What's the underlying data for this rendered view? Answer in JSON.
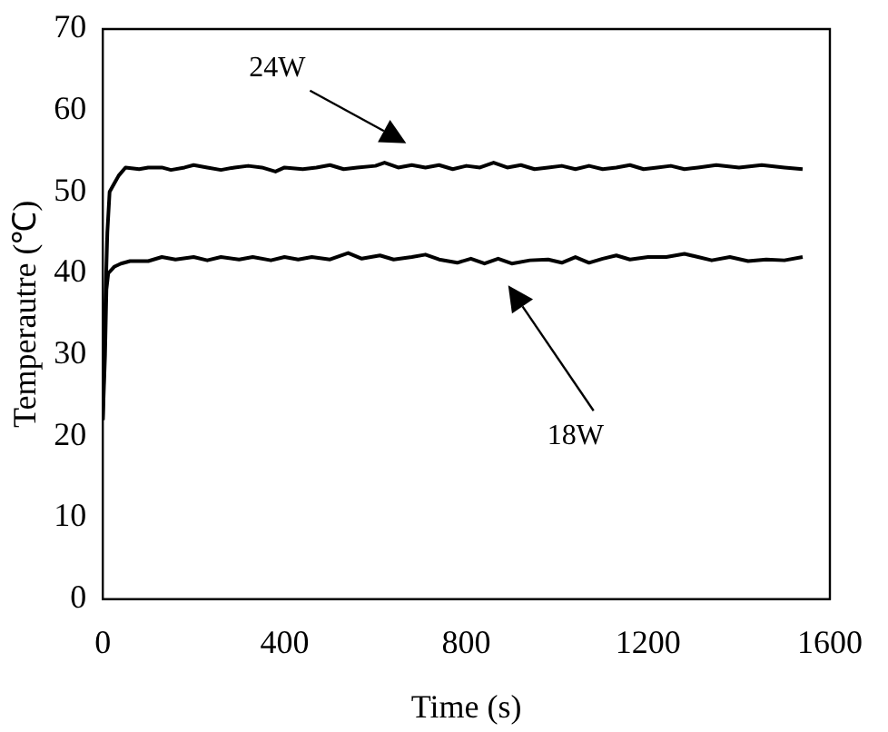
{
  "chart_data": {
    "type": "line",
    "xlabel": "Time (s)",
    "ylabel": "Temperautre (℃)",
    "xlim": [
      0,
      1600
    ],
    "xticks": [
      0,
      400,
      800,
      1200,
      1600
    ],
    "ylim": [
      0,
      70
    ],
    "yticks": [
      0,
      10,
      20,
      30,
      40,
      50,
      60,
      70
    ],
    "grid": false,
    "legend": false,
    "marker": "none",
    "line_style": "solid",
    "series": [
      {
        "color": "#000000",
        "x": [
          0,
          5,
          10,
          15,
          25,
          35,
          50,
          80,
          100,
          130,
          150,
          180,
          200,
          230,
          260,
          290,
          320,
          350,
          380,
          400,
          440,
          470,
          500,
          530,
          560,
          600,
          620,
          650,
          680,
          710,
          740,
          770,
          800,
          830,
          860,
          890,
          920,
          950,
          980,
          1010,
          1040,
          1070,
          1100,
          1130,
          1160,
          1190,
          1220,
          1250,
          1280,
          1310,
          1350,
          1400,
          1450,
          1500,
          1540
        ],
        "values": [
          22,
          35,
          45,
          50,
          51,
          52,
          53,
          52.8,
          53,
          53,
          52.7,
          53,
          53.3,
          53,
          52.7,
          53,
          53.2,
          53,
          52.5,
          53,
          52.8,
          53,
          53.3,
          52.8,
          53,
          53.2,
          53.6,
          53,
          53.3,
          53,
          53.3,
          52.8,
          53.2,
          53,
          53.6,
          53,
          53.3,
          52.8,
          53,
          53.2,
          52.8,
          53.2,
          52.8,
          53,
          53.3,
          52.8,
          53,
          53.2,
          52.8,
          53,
          53.3,
          53,
          53.3,
          53,
          52.8
        ]
      },
      {
        "color": "#000000",
        "x": [
          0,
          5,
          8,
          12,
          25,
          40,
          60,
          100,
          130,
          160,
          200,
          230,
          260,
          300,
          330,
          370,
          400,
          430,
          460,
          500,
          540,
          570,
          610,
          640,
          680,
          710,
          740,
          780,
          810,
          840,
          870,
          900,
          940,
          980,
          1010,
          1040,
          1070,
          1100,
          1130,
          1160,
          1200,
          1240,
          1280,
          1310,
          1340,
          1380,
          1420,
          1460,
          1500,
          1540
        ],
        "values": [
          22,
          30,
          38,
          40,
          40.8,
          41.2,
          41.5,
          41.5,
          42,
          41.7,
          42,
          41.6,
          42,
          41.7,
          42,
          41.6,
          42,
          41.7,
          42,
          41.7,
          42.5,
          41.8,
          42.2,
          41.7,
          42,
          42.3,
          41.7,
          41.3,
          41.8,
          41.2,
          41.8,
          41.2,
          41.6,
          41.7,
          41.3,
          42,
          41.3,
          41.8,
          42.2,
          41.7,
          42,
          42,
          42.4,
          42,
          41.6,
          42,
          41.5,
          41.7,
          41.6,
          42
        ]
      }
    ],
    "annotations": [
      "24W",
      "18W"
    ]
  }
}
